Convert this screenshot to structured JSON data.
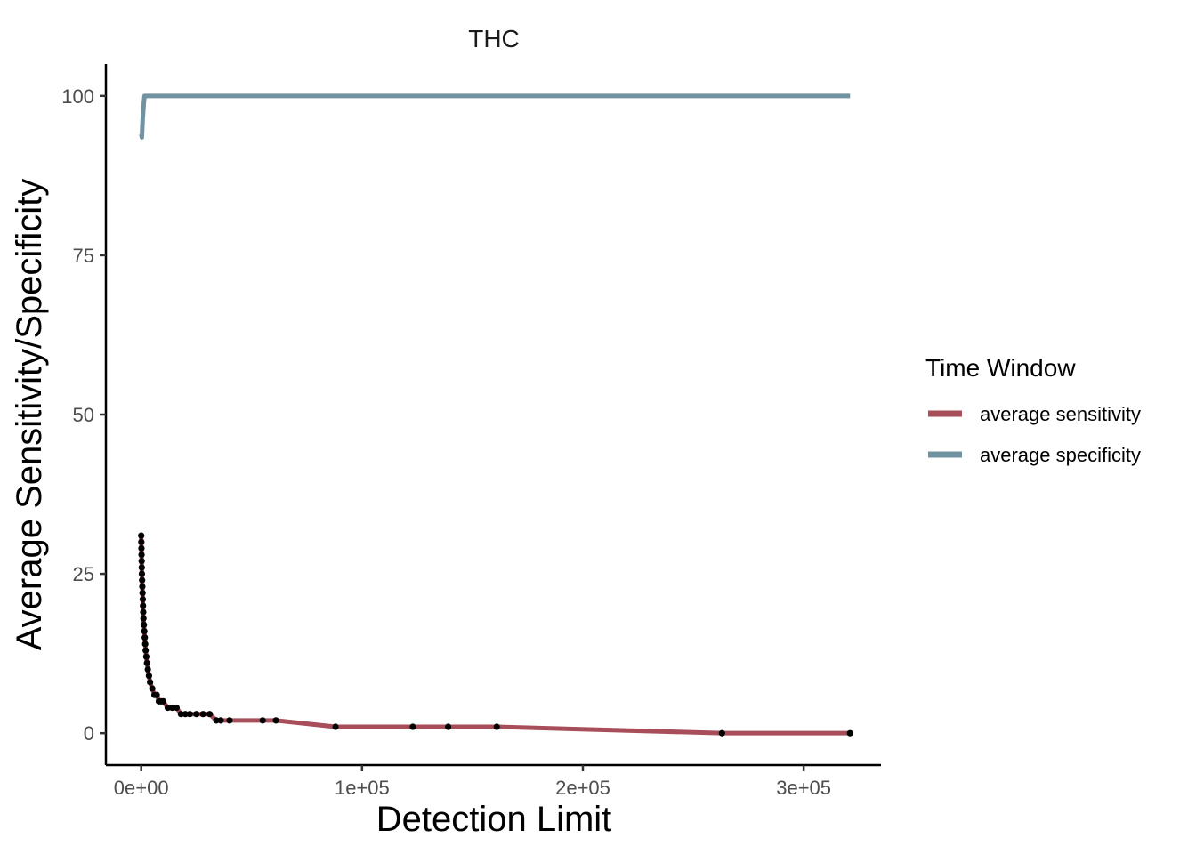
{
  "chart_data": {
    "type": "line",
    "title": "THC",
    "xlabel": "Detection Limit",
    "ylabel": "Average Sensitivity/Specificity",
    "xlim": [
      -16000,
      335000
    ],
    "ylim": [
      -5,
      105
    ],
    "x_ticks": [
      0,
      100000,
      200000,
      300000
    ],
    "x_tick_labels": [
      "0e+00",
      "1e+05",
      "2e+05",
      "3e+05"
    ],
    "y_ticks": [
      0,
      25,
      50,
      75,
      100
    ],
    "y_tick_labels": [
      "0",
      "25",
      "50",
      "75",
      "100"
    ],
    "grid": false,
    "legend": {
      "title": "Time Window",
      "position": "right",
      "entries": [
        "average sensitivity",
        "average specificity"
      ]
    },
    "series": [
      {
        "name": "average sensitivity",
        "color": "#A84E5A",
        "points": true,
        "x": [
          0,
          50,
          100,
          150,
          200,
          250,
          300,
          400,
          500,
          600,
          700,
          800,
          900,
          1000,
          1200,
          1400,
          1600,
          1800,
          2000,
          2300,
          2600,
          3000,
          3500,
          4000,
          5000,
          6000,
          7000,
          8000,
          9000,
          10000,
          12000,
          14000,
          16000,
          18000,
          20000,
          22000,
          25000,
          28000,
          31000,
          34000,
          36000,
          40000,
          55000,
          61000,
          88000,
          123000,
          139000,
          161000,
          263000,
          321000
        ],
        "y": [
          31,
          30,
          29,
          28,
          27,
          26,
          25,
          24,
          23,
          22,
          21,
          20,
          19,
          18,
          17,
          16,
          15,
          14,
          13,
          12,
          11,
          10,
          9,
          8,
          7,
          6,
          6,
          5,
          5,
          5,
          4,
          4,
          4,
          3,
          3,
          3,
          3,
          3,
          3,
          2,
          2,
          2,
          2,
          2,
          1,
          1,
          1,
          1,
          0,
          0
        ]
      },
      {
        "name": "average specificity",
        "color": "#7193A1",
        "points": false,
        "x": [
          0,
          300,
          600,
          900,
          1200,
          1500,
          2000,
          5000,
          50000,
          150000,
          321000
        ],
        "y": [
          94,
          93.5,
          96,
          97.5,
          99,
          100,
          100,
          100,
          100,
          100,
          100
        ]
      }
    ]
  }
}
